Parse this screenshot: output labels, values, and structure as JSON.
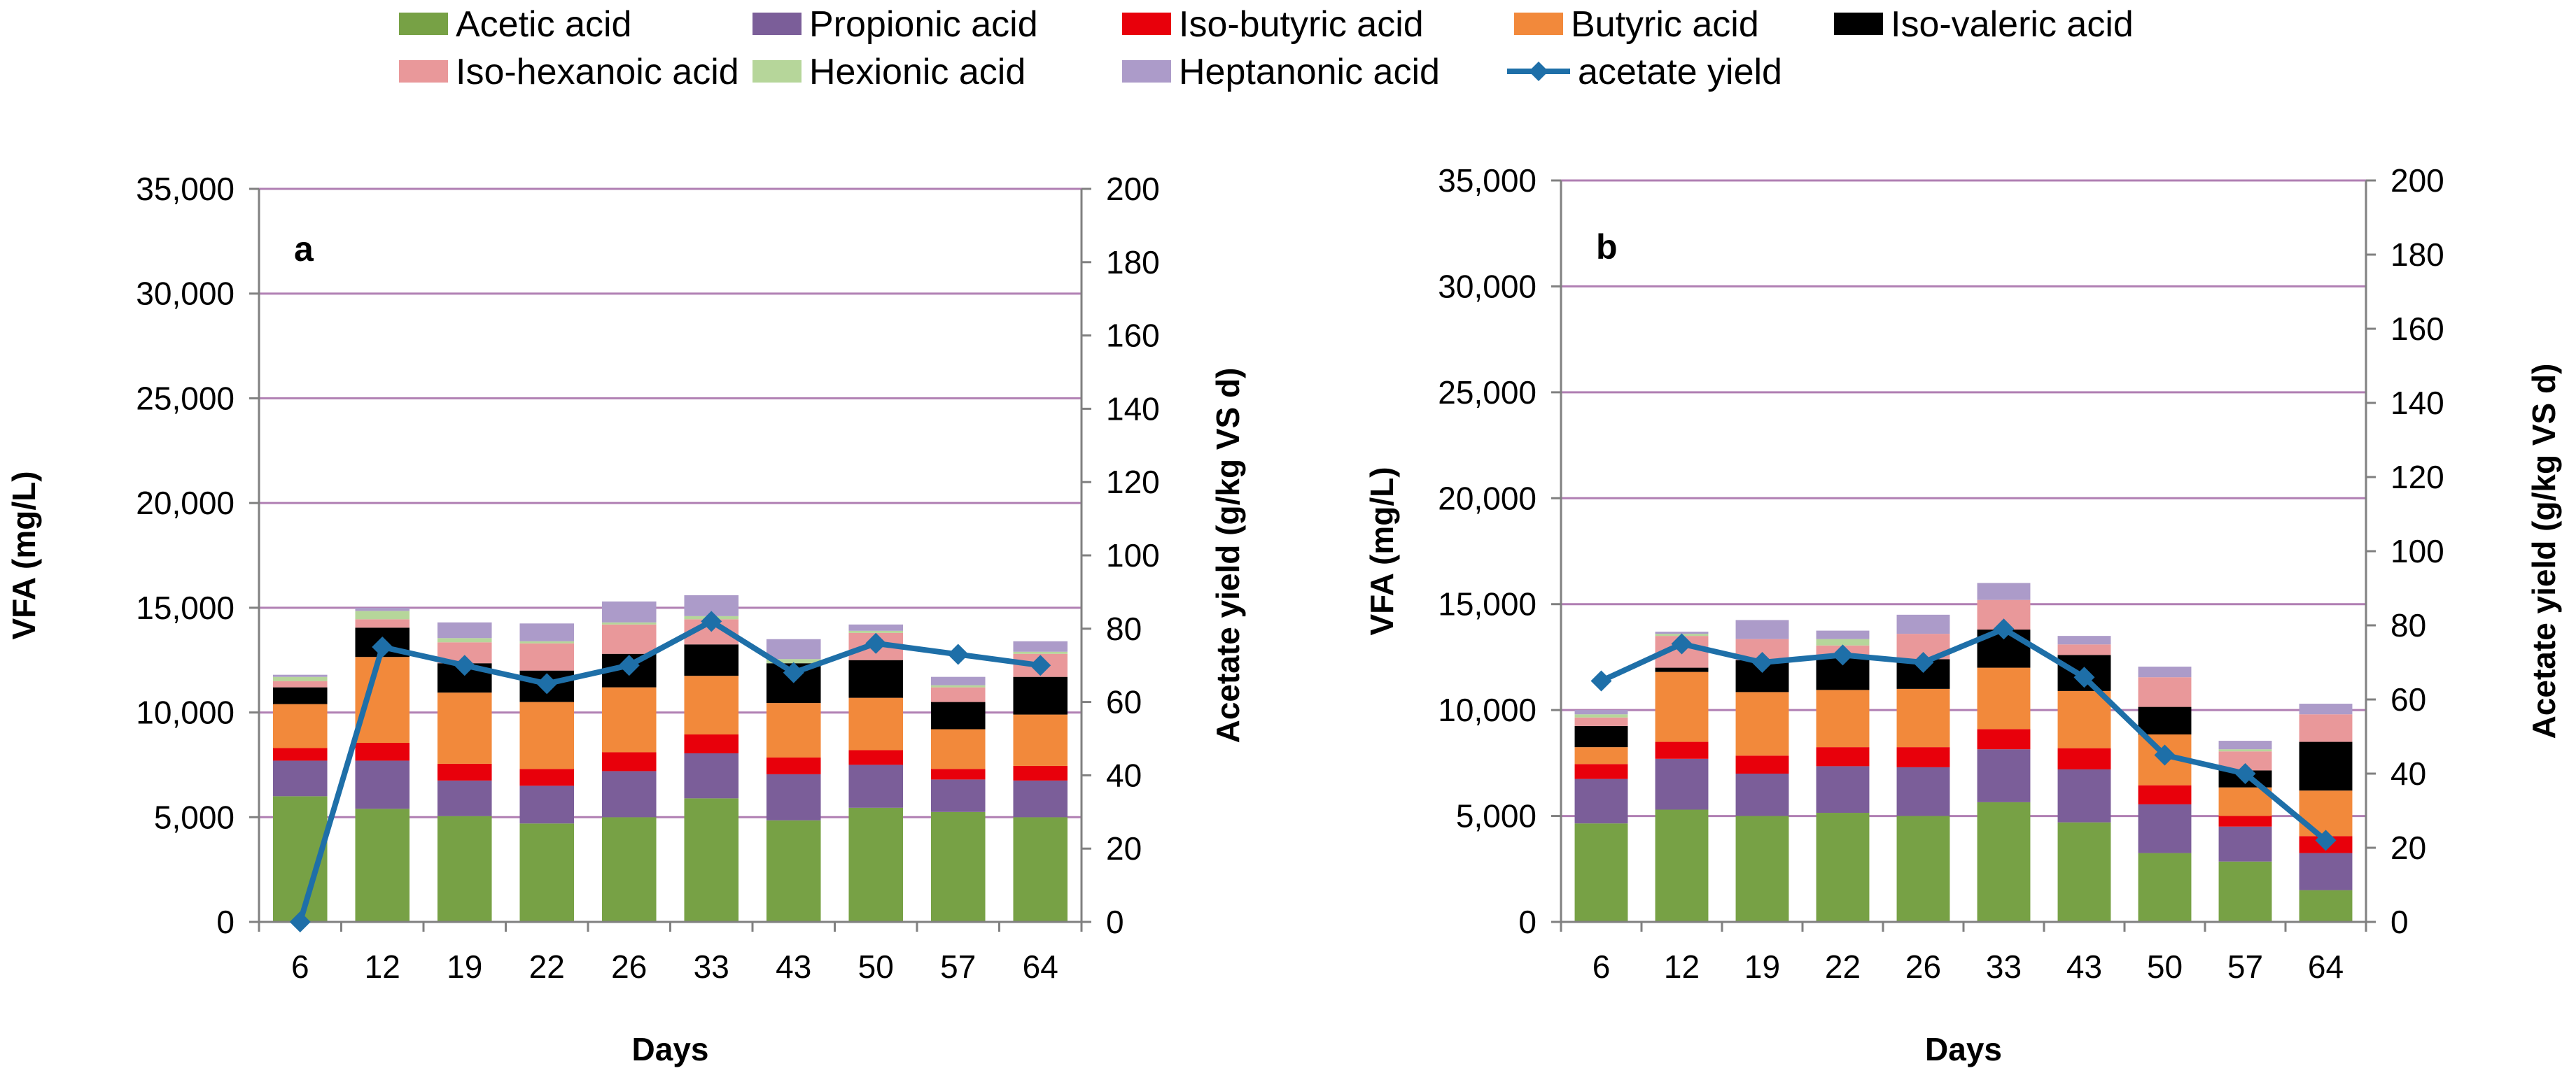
{
  "chart_data": [
    {
      "type": "bar",
      "panel_label": "a",
      "stacked": true,
      "categories": [
        "6",
        "12",
        "19",
        "22",
        "26",
        "33",
        "43",
        "50",
        "57",
        "64"
      ],
      "xlabel": "Days",
      "ylabel": "VFA (mg/L)",
      "ylabel_secondary": "Acetate yield (g/kg VS d)",
      "ylim": [
        0,
        35000
      ],
      "y_ticks": [
        "0",
        "5,000",
        "10,000",
        "15,000",
        "20,000",
        "25,000",
        "30,000",
        "35,000"
      ],
      "ylim_secondary": [
        0,
        200
      ],
      "y2_ticks": [
        "0",
        "20",
        "40",
        "60",
        "80",
        "100",
        "120",
        "140",
        "160",
        "180",
        "200"
      ],
      "series": [
        {
          "name": "Acetic acid",
          "values": [
            6000,
            5400,
            5050,
            4700,
            5000,
            5900,
            4850,
            5450,
            5250,
            5000
          ]
        },
        {
          "name": "Propionic acid",
          "values": [
            1700,
            2300,
            1700,
            1800,
            2200,
            2150,
            2200,
            2050,
            1550,
            1750
          ]
        },
        {
          "name": "Iso-butyric acid",
          "values": [
            600,
            850,
            800,
            800,
            900,
            900,
            800,
            700,
            500,
            700
          ]
        },
        {
          "name": "Butyric acid",
          "values": [
            2100,
            4100,
            3400,
            3200,
            3100,
            2800,
            2600,
            2500,
            1900,
            2450
          ]
        },
        {
          "name": "Iso-valeric acid",
          "values": [
            800,
            1400,
            1400,
            1500,
            1600,
            1500,
            1900,
            1800,
            1300,
            1800
          ]
        },
        {
          "name": "Iso-hexanoic acid",
          "values": [
            300,
            400,
            1000,
            1300,
            1400,
            1200,
            0,
            1300,
            700,
            1100
          ]
        },
        {
          "name": "Hexionic acid",
          "values": [
            200,
            400,
            200,
            100,
            100,
            150,
            200,
            100,
            100,
            100
          ]
        },
        {
          "name": "Heptanonic acid",
          "values": [
            100,
            150,
            750,
            850,
            1000,
            1000,
            950,
            300,
            400,
            500
          ]
        }
      ],
      "line_series": {
        "name": "acetate yield",
        "axis": "secondary",
        "values": [
          0,
          75,
          70,
          65,
          70,
          82,
          68,
          76,
          73,
          70
        ]
      }
    },
    {
      "type": "bar",
      "panel_label": "b",
      "stacked": true,
      "categories": [
        "6",
        "12",
        "19",
        "22",
        "26",
        "33",
        "43",
        "50",
        "57",
        "64"
      ],
      "xlabel": "Days",
      "ylabel": "VFA (mg/L)",
      "ylabel_secondary": "Acetate yield (g/kg VS d)",
      "ylim": [
        0,
        35000
      ],
      "y_ticks": [
        "0",
        "5,000",
        "10,000",
        "15,000",
        "20,000",
        "25,000",
        "30,000",
        "35,000"
      ],
      "ylim_secondary": [
        0,
        200
      ],
      "y2_ticks": [
        "0",
        "20",
        "40",
        "60",
        "80",
        "100",
        "120",
        "140",
        "160",
        "180",
        "200"
      ],
      "series": [
        {
          "name": "Acetic acid",
          "values": [
            4650,
            5300,
            5000,
            5150,
            5000,
            5650,
            4700,
            3250,
            2850,
            1500
          ]
        },
        {
          "name": "Propionic acid",
          "values": [
            2100,
            2400,
            2000,
            2200,
            2300,
            2500,
            2500,
            2300,
            1650,
            1750
          ]
        },
        {
          "name": "Iso-butyric acid",
          "values": [
            700,
            800,
            850,
            900,
            950,
            950,
            1000,
            900,
            500,
            800
          ]
        },
        {
          "name": "Butyric acid",
          "values": [
            800,
            3300,
            3000,
            2700,
            2750,
            2900,
            2700,
            2400,
            1350,
            2150
          ]
        },
        {
          "name": "Iso-valeric acid",
          "values": [
            1000,
            200,
            1500,
            1500,
            1400,
            1800,
            1700,
            1300,
            800,
            2300
          ]
        },
        {
          "name": "Iso-hexanoic acid",
          "values": [
            400,
            1500,
            1000,
            600,
            1200,
            1400,
            500,
            1400,
            900,
            1300
          ]
        },
        {
          "name": "Hexionic acid",
          "values": [
            150,
            100,
            0,
            300,
            0,
            0,
            0,
            0,
            100,
            0
          ]
        },
        {
          "name": "Heptanonic acid",
          "values": [
            200,
            100,
            900,
            400,
            900,
            800,
            400,
            500,
            400,
            500
          ]
        }
      ],
      "line_series": {
        "name": "acetate yield",
        "axis": "secondary",
        "values": [
          65,
          75,
          70,
          72,
          70,
          79,
          66,
          45,
          40,
          22
        ]
      }
    }
  ],
  "legend": [
    {
      "label": "Acetic acid",
      "color": "#77A145",
      "kind": "box"
    },
    {
      "label": "Propionic acid",
      "color": "#7B5E99",
      "kind": "box"
    },
    {
      "label": "Iso-butyric acid",
      "color": "#E8000B",
      "kind": "box"
    },
    {
      "label": "Butyric acid",
      "color": "#F2893B",
      "kind": "box"
    },
    {
      "label": "Iso-valeric acid",
      "color": "#000000",
      "kind": "box"
    },
    {
      "label": "Iso-hexanoic acid",
      "color": "#E9989A",
      "kind": "box"
    },
    {
      "label": "Hexionic acid",
      "color": "#B6D69A",
      "kind": "box"
    },
    {
      "label": "Heptanonic acid",
      "color": "#AC9BC9",
      "kind": "box"
    },
    {
      "label": "acetate yield",
      "color": "#1E6FA8",
      "kind": "line"
    }
  ],
  "colors": {
    "grid": "#B07FB3",
    "axis": "#808080"
  }
}
